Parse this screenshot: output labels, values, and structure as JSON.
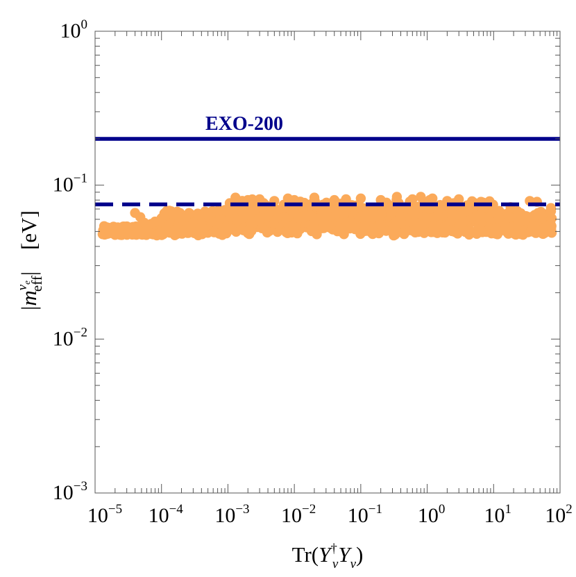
{
  "chart_data": {
    "type": "scatter",
    "xscale": "log",
    "yscale": "log",
    "xlim": [
      1e-05,
      100
    ],
    "ylim": [
      0.001,
      1
    ],
    "grid": false,
    "x_ticks": [
      {
        "base": "10",
        "exp": "−5"
      },
      {
        "base": "10",
        "exp": "−4"
      },
      {
        "base": "10",
        "exp": "−3"
      },
      {
        "base": "10",
        "exp": "−2"
      },
      {
        "base": "10",
        "exp": "−1"
      },
      {
        "base": "10",
        "exp": "0"
      },
      {
        "base": "10",
        "exp": "1"
      },
      {
        "base": "10",
        "exp": "2"
      }
    ],
    "y_ticks": [
      {
        "base": "10",
        "exp": "−3"
      },
      {
        "base": "10",
        "exp": "−2"
      },
      {
        "base": "10",
        "exp": "−1"
      },
      {
        "base": "10",
        "exp": "0"
      }
    ],
    "xlabel": {
      "pre": "Tr(",
      "y1": "Y",
      "sup1": "†",
      "sub1": "ν",
      "y2": "Y",
      "sub2": "ν",
      "post": ")"
    },
    "ylabel": {
      "bar1": "|",
      "m": "m",
      "sup": "ν",
      "supsub": "e",
      "sub": "eff",
      "bar2": "|",
      "unit": "[eV]"
    },
    "reference_lines": [
      {
        "label": "EXO-200",
        "y": 0.2,
        "style": "solid",
        "color": "#00008b"
      },
      {
        "label": "",
        "y": 0.075,
        "style": "dashed",
        "color": "#00008b"
      }
    ],
    "series": [
      {
        "style": "points",
        "color": "#fbaa5a",
        "band_x_range": [
          1.3e-05,
          75
        ],
        "band_y_range": [
          0.047,
          0.085
        ],
        "points": [
          [
            1.3e-05,
            0.048
          ],
          [
            1.6e-05,
            0.049
          ],
          [
            2e-05,
            0.048
          ],
          [
            2.5e-05,
            0.049
          ],
          [
            3e-05,
            0.048
          ],
          [
            4e-05,
            0.066
          ],
          [
            4.8e-05,
            0.062
          ],
          [
            5.5e-05,
            0.057
          ],
          [
            7e-05,
            0.056
          ],
          [
            8e-05,
            0.058
          ],
          [
            0.0001,
            0.061
          ],
          [
            0.00012,
            0.068
          ],
          [
            0.00015,
            0.064
          ],
          [
            0.0002,
            0.061
          ],
          [
            0.00026,
            0.066
          ],
          [
            0.0003,
            0.057
          ],
          [
            0.0004,
            0.054
          ],
          [
            0.0005,
            0.064
          ],
          [
            0.0007,
            0.068
          ],
          [
            0.0009,
            0.069
          ],
          [
            0.0013,
            0.083
          ],
          [
            0.0016,
            0.076
          ],
          [
            0.002,
            0.08
          ],
          [
            0.003,
            0.081
          ],
          [
            0.005,
            0.079
          ],
          [
            0.008,
            0.082
          ],
          [
            0.01,
            0.08
          ],
          [
            0.02,
            0.083
          ],
          [
            0.04,
            0.08
          ],
          [
            0.06,
            0.081
          ],
          [
            0.1,
            0.082
          ],
          [
            0.2,
            0.08
          ],
          [
            0.35,
            0.084
          ],
          [
            0.6,
            0.081
          ],
          [
            0.8,
            0.084
          ],
          [
            1.2,
            0.082
          ],
          [
            2,
            0.079
          ],
          [
            3,
            0.081
          ],
          [
            4,
            0.074
          ],
          [
            5,
            0.071
          ],
          [
            7,
            0.077
          ],
          [
            10,
            0.068
          ],
          [
            12,
            0.061
          ],
          [
            18,
            0.072
          ],
          [
            25,
            0.058
          ],
          [
            35,
            0.079
          ],
          [
            45,
            0.078
          ],
          [
            60,
            0.051
          ],
          [
            70,
            0.055
          ],
          [
            73,
            0.071
          ],
          [
            75,
            0.049
          ]
        ]
      }
    ]
  }
}
